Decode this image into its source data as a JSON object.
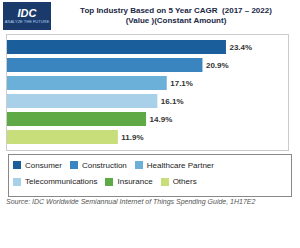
{
  "chart_data": {
    "type": "bar",
    "orientation": "horizontal",
    "title": "Top Industry Based on 5 Year CAGR  (2017 – 2022)",
    "subtitle": "(Value )(Constant Amount)",
    "categories": [
      "Consumer",
      "Construction",
      "Healthcare Partner",
      "Telecommunications",
      "Insurance",
      "Others"
    ],
    "values": [
      23.4,
      20.9,
      17.1,
      16.1,
      14.9,
      11.9
    ],
    "value_labels": [
      "23.4%",
      "20.9%",
      "17.1%",
      "16.1%",
      "14.9%",
      "11.9%"
    ],
    "colors": [
      "#1a5e9b",
      "#3a85c0",
      "#6ab0d8",
      "#a8d0e8",
      "#5faa46",
      "#c8de7a"
    ],
    "data_labels": true,
    "xlim": [
      0,
      30
    ],
    "tick_labels": false,
    "grid": false,
    "legend": "bottom",
    "annotations": [
      "IDC",
      "ANALYZE THE FUTURE",
      "Source: IDC Worldwide Semiannual Internet of Things Spending Guide, 1H17E2"
    ]
  }
}
